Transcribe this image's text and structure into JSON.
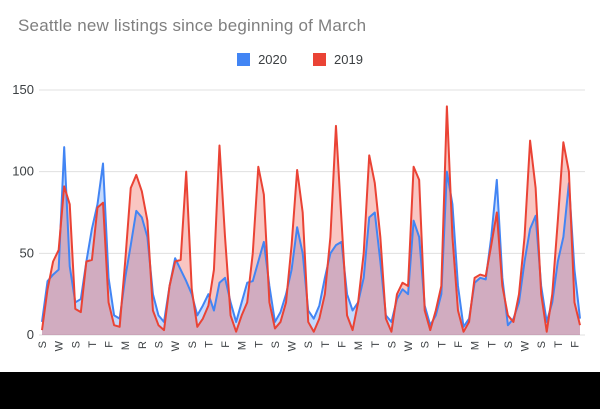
{
  "title": "Seattle new listings since beginning of March",
  "legend": {
    "items": [
      {
        "label": "2020",
        "color": "#4285f4"
      },
      {
        "label": "2019",
        "color": "#ea4335"
      }
    ]
  },
  "chart_data": {
    "type": "area",
    "title": "Seattle new listings since beginning of March",
    "xlabel": "",
    "ylabel": "",
    "ylim": [
      0,
      150
    ],
    "y_ticks": [
      0,
      50,
      100,
      150
    ],
    "grid": true,
    "legend_position": "top",
    "x_note": "daily points since beginning of March; one weekday tick shown every 3rd point",
    "x_tick_every": 3,
    "x_tick_labels": [
      "S",
      "W",
      "S",
      "T",
      "F",
      "M",
      "R",
      "S",
      "W",
      "S",
      "T",
      "F",
      "M",
      "T",
      "S",
      "W",
      "S",
      "T",
      "F",
      "M",
      "T",
      "S",
      "W",
      "S",
      "T",
      "F",
      "M",
      "T",
      "S",
      "W",
      "S",
      "T",
      "F"
    ],
    "series": [
      {
        "name": "2020",
        "color": "#4285f4",
        "fill_opacity": 0.3,
        "values": [
          8,
          33,
          37,
          40,
          115,
          42,
          20,
          22,
          45,
          65,
          80,
          105,
          35,
          12,
          10,
          35,
          55,
          76,
          72,
          60,
          25,
          12,
          8,
          30,
          47,
          40,
          33,
          25,
          12,
          18,
          25,
          15,
          32,
          35,
          20,
          8,
          20,
          32,
          33,
          45,
          57,
          30,
          8,
          14,
          25,
          40,
          66,
          50,
          15,
          10,
          18,
          35,
          50,
          55,
          57,
          25,
          15,
          20,
          35,
          72,
          75,
          45,
          12,
          8,
          22,
          28,
          25,
          70,
          60,
          18,
          6,
          12,
          25,
          100,
          80,
          30,
          5,
          10,
          32,
          35,
          34,
          60,
          95,
          35,
          6,
          10,
          20,
          45,
          65,
          73,
          30,
          8,
          20,
          45,
          60,
          93,
          40,
          10
        ]
      },
      {
        "name": "2019",
        "color": "#ea4335",
        "fill_opacity": 0.3,
        "values": [
          3,
          28,
          45,
          52,
          91,
          80,
          16,
          14,
          45,
          46,
          78,
          81,
          20,
          6,
          5,
          45,
          90,
          98,
          88,
          70,
          15,
          6,
          3,
          30,
          45,
          46,
          100,
          28,
          5,
          10,
          18,
          40,
          116,
          60,
          12,
          2,
          12,
          20,
          50,
          103,
          86,
          20,
          4,
          8,
          20,
          55,
          101,
          75,
          8,
          2,
          10,
          25,
          60,
          128,
          70,
          12,
          3,
          20,
          50,
          110,
          93,
          60,
          10,
          2,
          25,
          32,
          30,
          103,
          95,
          15,
          3,
          15,
          30,
          140,
          60,
          15,
          2,
          8,
          35,
          37,
          36,
          55,
          75,
          30,
          12,
          8,
          25,
          60,
          119,
          90,
          25,
          2,
          25,
          70,
          118,
          100,
          20,
          6
        ]
      }
    ],
    "style": {
      "gridline_color": "#e0e0e0",
      "axis_label_color": "#3c4043",
      "title_color": "#7f7f7f",
      "background": "#ffffff"
    }
  }
}
